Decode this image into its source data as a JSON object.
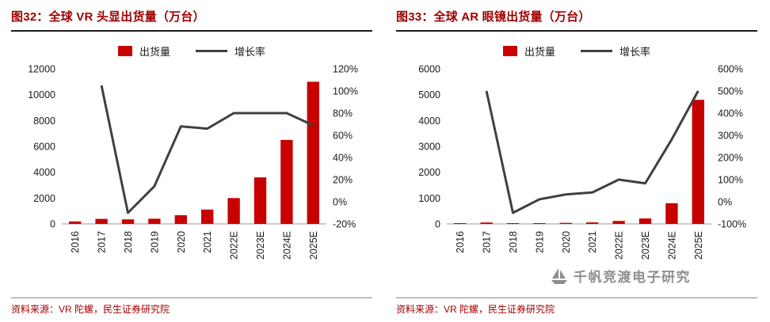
{
  "colors": {
    "bar": "#C80000",
    "line": "#404040",
    "title": "#A00000",
    "source": "#A00000",
    "axis_text": "#1a1a1a",
    "watermark": "#8f8f8f"
  },
  "watermark": {
    "text": "千帆竞渡电子研究"
  },
  "panels": [
    {
      "title": "图32：全球 VR 头显出货量（万台）",
      "legend": {
        "bar": "出货量",
        "line": "增长率"
      },
      "source": "资料来源：VR 陀螺，民生证券研究院"
    },
    {
      "title": "图33：全球 AR 眼镜出货量（万台）",
      "legend": {
        "bar": "出货量",
        "line": "增长率"
      },
      "source": "资料来源：VR 陀螺，民生证券研究院"
    }
  ],
  "chart_data": [
    {
      "type": "bar",
      "title": "图32：全球 VR 头显出货量（万台）",
      "categories": [
        "2016",
        "2017",
        "2018",
        "2019",
        "2020",
        "2021",
        "2022E",
        "2023E",
        "2024E",
        "2025E"
      ],
      "series": [
        {
          "name": "出货量",
          "type": "bar",
          "axis": "left",
          "unit": "万台",
          "values": [
            190,
            390,
            350,
            400,
            670,
            1110,
            2000,
            3600,
            6500,
            11000
          ]
        },
        {
          "name": "增长率",
          "type": "line",
          "axis": "right",
          "unit": "%",
          "values": [
            null,
            105,
            -10,
            14,
            68,
            66,
            80,
            80,
            80,
            69
          ]
        }
      ],
      "left_axis": {
        "min": 0,
        "max": 12000,
        "step": 2000
      },
      "right_axis": {
        "min": -20,
        "max": 120,
        "step": 20,
        "suffix": "%"
      },
      "legend_position": "top",
      "grid": false
    },
    {
      "type": "bar",
      "title": "图33：全球 AR 眼镜出货量（万台）",
      "categories": [
        "2016",
        "2017",
        "2018",
        "2019",
        "2020",
        "2021",
        "2022E",
        "2023E",
        "2024E",
        "2025E"
      ],
      "series": [
        {
          "name": "出货量",
          "type": "bar",
          "axis": "left",
          "unit": "万台",
          "values": [
            9,
            54,
            27,
            30,
            40,
            57,
            115,
            210,
            800,
            4800
          ]
        },
        {
          "name": "增长率",
          "type": "line",
          "axis": "right",
          "unit": "%",
          "values": [
            null,
            500,
            -50,
            11,
            33,
            42,
            100,
            83,
            281,
            500
          ]
        }
      ],
      "left_axis": {
        "min": 0,
        "max": 6000,
        "step": 1000
      },
      "right_axis": {
        "min": -100,
        "max": 600,
        "step": 100,
        "suffix": "%"
      },
      "legend_position": "top",
      "grid": false
    }
  ]
}
